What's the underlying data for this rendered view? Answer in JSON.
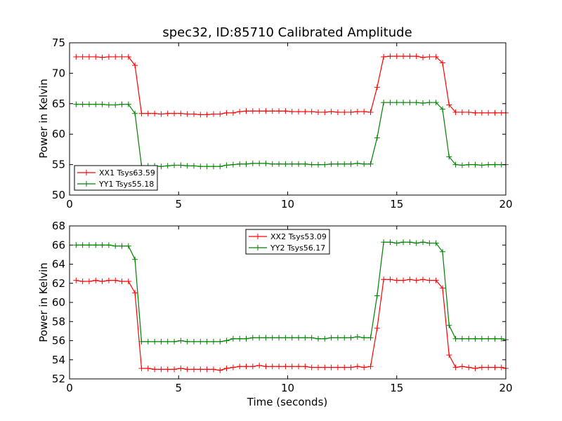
{
  "figure_title": "spec32, ID:85710 Calibrated Amplitude",
  "chart_data": [
    {
      "type": "line",
      "title": "spec32, ID:85710 Calibrated Amplitude",
      "xlabel": "",
      "ylabel": "Power in Kelvin",
      "xlim": [
        0,
        20
      ],
      "ylim": [
        50,
        75
      ],
      "xticks": [
        0,
        5,
        10,
        15,
        20
      ],
      "yticks": [
        50,
        55,
        60,
        65,
        70,
        75
      ],
      "grid": false,
      "legend_position": "lower-left",
      "x": [
        0.3,
        0.6,
        0.9,
        1.2,
        1.5,
        1.8,
        2.1,
        2.4,
        2.7,
        3.0,
        3.3,
        3.6,
        3.9,
        4.2,
        4.5,
        4.8,
        5.1,
        5.4,
        5.7,
        6.0,
        6.3,
        6.6,
        6.9,
        7.2,
        7.5,
        7.8,
        8.1,
        8.4,
        8.7,
        9.0,
        9.3,
        9.6,
        9.9,
        10.2,
        10.5,
        10.8,
        11.1,
        11.4,
        11.7,
        12.0,
        12.3,
        12.6,
        12.9,
        13.2,
        13.5,
        13.8,
        14.1,
        14.4,
        14.7,
        15.0,
        15.3,
        15.6,
        15.9,
        16.2,
        16.5,
        16.8,
        17.1,
        17.4,
        17.7,
        18.0,
        18.3,
        18.6,
        18.9,
        19.2,
        19.5,
        19.8,
        20.0
      ],
      "series": [
        {
          "name": "XX1 Tsys63.59",
          "color": "#ff0000",
          "values": [
            72.7,
            72.7,
            72.7,
            72.7,
            72.6,
            72.7,
            72.7,
            72.7,
            72.7,
            71.3,
            63.4,
            63.4,
            63.4,
            63.3,
            63.4,
            63.4,
            63.4,
            63.3,
            63.3,
            63.2,
            63.2,
            63.3,
            63.3,
            63.5,
            63.5,
            63.7,
            63.8,
            63.8,
            63.8,
            63.8,
            63.8,
            63.8,
            63.8,
            63.7,
            63.7,
            63.7,
            63.7,
            63.6,
            63.6,
            63.7,
            63.6,
            63.6,
            63.6,
            63.7,
            63.7,
            63.6,
            67.7,
            72.7,
            72.8,
            72.8,
            72.8,
            72.8,
            72.8,
            72.6,
            72.7,
            72.7,
            71.7,
            64.8,
            63.6,
            63.6,
            63.6,
            63.5,
            63.5,
            63.5,
            63.5,
            63.5,
            63.5
          ]
        },
        {
          "name": "YY1 Tsys55.18",
          "color": "#008000",
          "values": [
            64.9,
            64.9,
            64.9,
            64.9,
            64.9,
            64.8,
            64.8,
            64.9,
            64.9,
            63.4,
            54.8,
            54.8,
            54.8,
            54.7,
            54.8,
            54.9,
            54.9,
            54.8,
            54.8,
            54.7,
            54.7,
            54.7,
            54.7,
            54.9,
            55.0,
            55.1,
            55.1,
            55.2,
            55.2,
            55.2,
            55.1,
            55.1,
            55.1,
            55.1,
            55.1,
            55.1,
            55.0,
            55.0,
            55.0,
            55.1,
            55.1,
            55.1,
            55.1,
            55.2,
            55.1,
            55.1,
            59.4,
            65.2,
            65.2,
            65.2,
            65.2,
            65.2,
            65.2,
            65.1,
            65.2,
            65.2,
            64.1,
            56.3,
            55.0,
            54.9,
            55.0,
            55.0,
            54.9,
            55.0,
            55.0,
            55.0,
            55.0
          ]
        }
      ]
    },
    {
      "type": "line",
      "title": "",
      "xlabel": "Time (seconds)",
      "ylabel": "Power in Kelvin",
      "xlim": [
        0,
        20
      ],
      "ylim": [
        52,
        68
      ],
      "xticks": [
        0,
        5,
        10,
        15,
        20
      ],
      "yticks": [
        52,
        54,
        56,
        58,
        60,
        62,
        64,
        66,
        68
      ],
      "grid": false,
      "legend_position": "upper-center",
      "x": [
        0.3,
        0.6,
        0.9,
        1.2,
        1.5,
        1.8,
        2.1,
        2.4,
        2.7,
        3.0,
        3.3,
        3.6,
        3.9,
        4.2,
        4.5,
        4.8,
        5.1,
        5.4,
        5.7,
        6.0,
        6.3,
        6.6,
        6.9,
        7.2,
        7.5,
        7.8,
        8.1,
        8.4,
        8.7,
        9.0,
        9.3,
        9.6,
        9.9,
        10.2,
        10.5,
        10.8,
        11.1,
        11.4,
        11.7,
        12.0,
        12.3,
        12.6,
        12.9,
        13.2,
        13.5,
        13.8,
        14.1,
        14.4,
        14.7,
        15.0,
        15.3,
        15.6,
        15.9,
        16.2,
        16.5,
        16.8,
        17.1,
        17.4,
        17.7,
        18.0,
        18.3,
        18.6,
        18.9,
        19.2,
        19.5,
        19.8,
        20.0
      ],
      "series": [
        {
          "name": "XX2 Tsys53.09",
          "color": "#ff0000",
          "values": [
            62.3,
            62.2,
            62.2,
            62.3,
            62.2,
            62.3,
            62.3,
            62.2,
            62.2,
            61.0,
            53.1,
            53.1,
            53.0,
            53.0,
            53.0,
            53.0,
            53.1,
            53.0,
            53.0,
            53.0,
            53.0,
            53.0,
            52.9,
            53.1,
            53.2,
            53.3,
            53.3,
            53.3,
            53.4,
            53.3,
            53.3,
            53.3,
            53.3,
            53.3,
            53.3,
            53.3,
            53.2,
            53.2,
            53.2,
            53.2,
            53.2,
            53.2,
            53.2,
            53.3,
            53.2,
            53.3,
            57.3,
            62.4,
            62.4,
            62.3,
            62.3,
            62.4,
            62.3,
            62.4,
            62.3,
            62.3,
            61.5,
            54.5,
            53.2,
            53.3,
            53.2,
            53.1,
            53.2,
            53.2,
            53.2,
            53.2,
            53.1
          ]
        },
        {
          "name": "YY2 Tsys56.17",
          "color": "#008000",
          "values": [
            66.0,
            66.0,
            66.0,
            66.0,
            66.0,
            66.0,
            65.9,
            65.9,
            65.9,
            64.5,
            55.9,
            55.9,
            55.9,
            55.9,
            55.9,
            55.9,
            56.0,
            55.9,
            55.9,
            55.9,
            55.9,
            55.9,
            55.9,
            56.0,
            56.2,
            56.2,
            56.2,
            56.3,
            56.3,
            56.3,
            56.3,
            56.3,
            56.3,
            56.3,
            56.3,
            56.3,
            56.3,
            56.2,
            56.2,
            56.3,
            56.3,
            56.3,
            56.3,
            56.4,
            56.3,
            56.3,
            60.7,
            66.3,
            66.3,
            66.2,
            66.3,
            66.3,
            66.2,
            66.3,
            66.2,
            66.2,
            65.3,
            57.6,
            56.2,
            56.2,
            56.2,
            56.2,
            56.2,
            56.2,
            56.2,
            56.2,
            56.1
          ]
        }
      ]
    }
  ]
}
